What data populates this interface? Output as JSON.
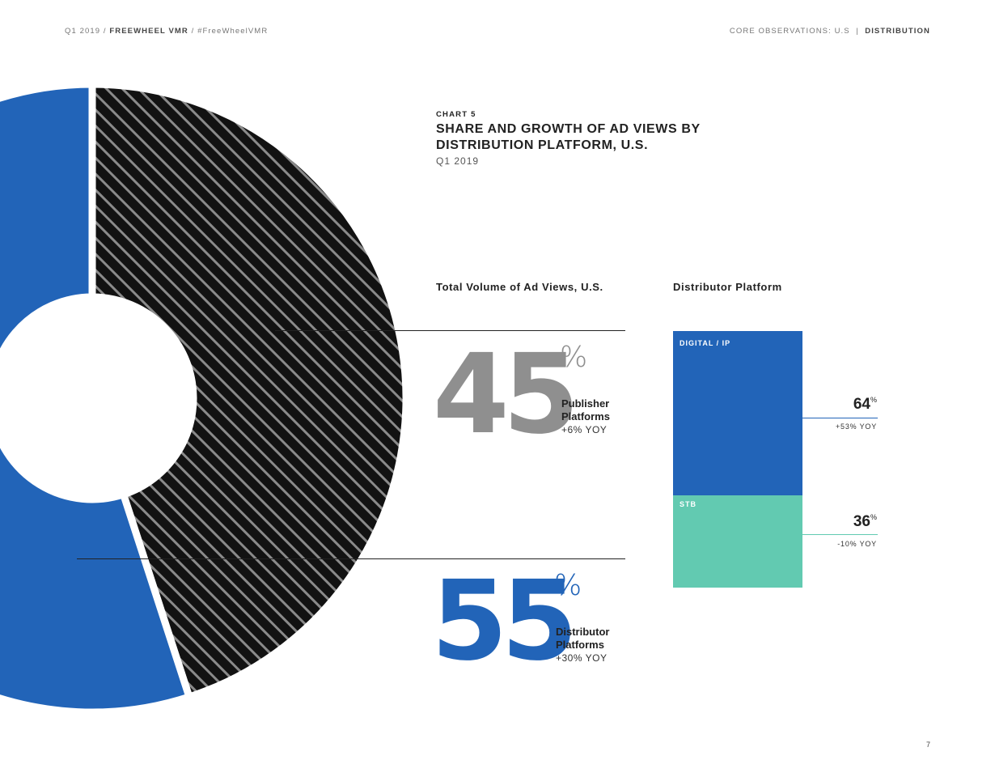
{
  "header": {
    "left_date": "Q1 2019",
    "left_brand": "FREEWHEEL VMR",
    "left_tag": "#FreeWheelVMR",
    "right_section": "CORE OBSERVATIONS: U.S",
    "right_topic": "DISTRIBUTION"
  },
  "title": {
    "chart_number": "CHART 5",
    "main": "SHARE AND GROWTH OF AD VIEWS BY DISTRIBUTION PLATFORM, U.S.",
    "period": "Q1 2019"
  },
  "left_section": {
    "heading": "Total Volume of Ad Views, U.S.",
    "publisher": {
      "value": "45",
      "unit": "%",
      "label_line1": "Publisher",
      "label_line2": "Platforms",
      "yoy": "+6% YOY"
    },
    "distributor": {
      "value": "55",
      "unit": "%",
      "label_line1": "Distributor",
      "label_line2": "Platforms",
      "yoy": "+30% YOY"
    }
  },
  "right_section": {
    "heading": "Distributor Platform",
    "digital": {
      "label": "DIGITAL / IP",
      "value": "64",
      "unit": "%",
      "yoy": "+53% YOY"
    },
    "stb": {
      "label": "STB",
      "value": "36",
      "unit": "%",
      "yoy": "-10% YOY"
    }
  },
  "page_number": "7",
  "colors": {
    "blue": "#2264b8",
    "gray": "#8f8f8f",
    "teal": "#62cab1",
    "black": "#121212"
  },
  "chart_data": [
    {
      "type": "pie",
      "categories": [
        "Publisher Platforms",
        "Distributor Platforms"
      ],
      "values": [
        45,
        55
      ],
      "yoy_change": [
        "+6%",
        "+30%"
      ],
      "style": "donut"
    },
    {
      "type": "bar",
      "stacked": true,
      "categories": [
        "DIGITAL / IP",
        "STB"
      ],
      "values": [
        64,
        36
      ],
      "yoy_change": [
        "+53%",
        "-10%"
      ]
    }
  ]
}
